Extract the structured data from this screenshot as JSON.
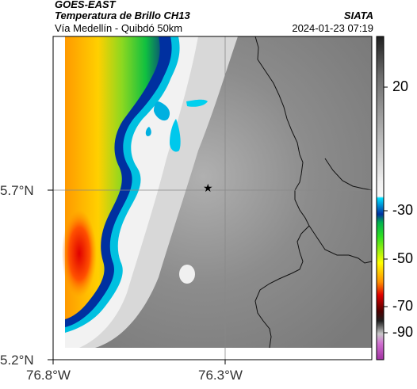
{
  "header": {
    "satellite": "GOES-EAST",
    "product": "Temperatura de Brillo CH13",
    "route": "Vía Medellín - Quibdó 50km",
    "source": "SIATA",
    "timestamp": "2024-01-23 07:19"
  },
  "axes": {
    "y_ticks": [
      "5.7°N",
      "5.2°N"
    ],
    "x_ticks": [
      "76.8°W",
      "76.3°W"
    ]
  },
  "colorbar": {
    "labels": [
      "20",
      "-30",
      "-50",
      "-70",
      "-90"
    ],
    "colors": {
      "gray_dark": "#3a3a3a",
      "gray_light": "#e6e6e6",
      "cyan": "#00d8f0",
      "blue": "#0030a0",
      "green": "#10c020",
      "yellow": "#ffff00",
      "orange": "#ff9000",
      "red": "#e00000",
      "dark_red": "#700000",
      "magenta": "#c040c0"
    }
  },
  "map": {
    "marker_icon": "star-icon"
  }
}
